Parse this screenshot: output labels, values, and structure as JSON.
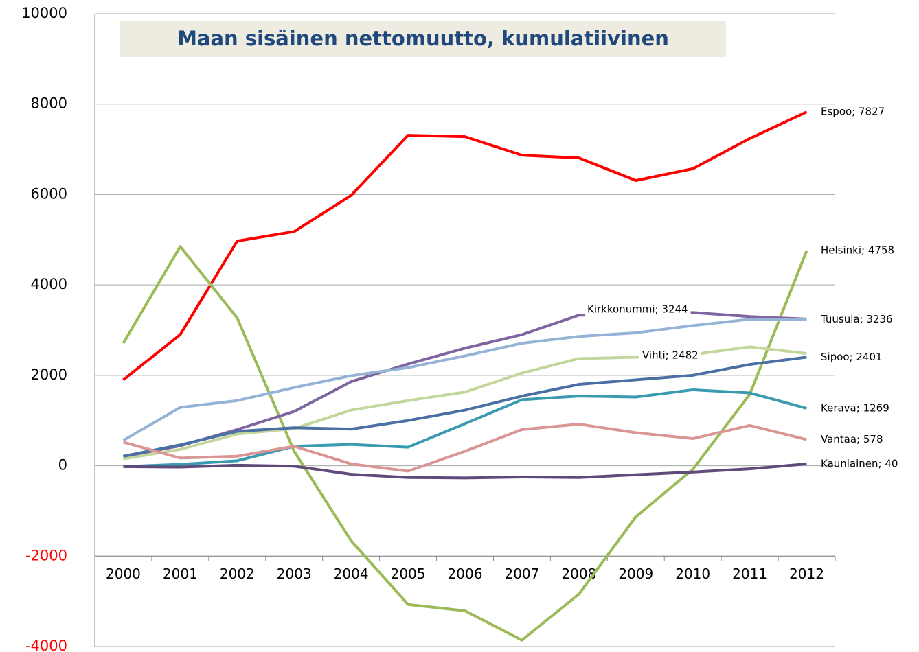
{
  "chart_data": {
    "type": "line",
    "title": "Maan sisäinen nettomuutto, kumulatiivinen",
    "categories": [
      "2000",
      "2001",
      "2002",
      "2003",
      "2004",
      "2005",
      "2006",
      "2007",
      "2008",
      "2009",
      "2010",
      "2011",
      "2012"
    ],
    "ylim": [
      -4000,
      10000
    ],
    "yticks": [
      -4000,
      -2000,
      0,
      2000,
      4000,
      6000,
      8000,
      10000
    ],
    "negative_tick_color": "#ff0000",
    "category_axis_at": -2000,
    "grid": true,
    "series": [
      {
        "name": "Espoo",
        "color": "#ff0000",
        "end_label": "Espoo; 7827",
        "values": [
          1900,
          2900,
          4970,
          5180,
          5980,
          7310,
          7280,
          6870,
          6810,
          6310,
          6570,
          7240,
          7827
        ]
      },
      {
        "name": "Helsinki",
        "color": "#9bbb59",
        "end_label": "Helsinki; 4758",
        "values": [
          2710,
          4850,
          3270,
          320,
          -1660,
          -3070,
          -3210,
          -3860,
          -2840,
          -1130,
          -80,
          1580,
          4758
        ]
      },
      {
        "name": "Kirkkonummi",
        "color": "#8064a2",
        "end_label": "Kirkkonummi; 3244",
        "values": [
          200,
          440,
          800,
          1200,
          1860,
          2250,
          2600,
          2900,
          3330,
          3340,
          3390,
          3300,
          3244
        ]
      },
      {
        "name": "Tuusula",
        "color": "#95b3d7",
        "end_label": "Tuusula; 3236",
        "values": [
          560,
          1290,
          1440,
          1730,
          1990,
          2170,
          2430,
          2710,
          2860,
          2940,
          3100,
          3240,
          3236
        ]
      },
      {
        "name": "Vihti",
        "color": "#c3d69b",
        "end_label": "Vihti; 2482",
        "values": [
          150,
          360,
          700,
          820,
          1230,
          1440,
          1630,
          2050,
          2370,
          2400,
          2460,
          2630,
          2482
        ]
      },
      {
        "name": "Sipoo",
        "color": "#4a6fa5",
        "end_label": "Sipoo; 2401",
        "values": [
          210,
          460,
          760,
          840,
          810,
          1000,
          1230,
          1540,
          1800,
          1900,
          2000,
          2240,
          2401
        ]
      },
      {
        "name": "Kerava",
        "color": "#3a9ab0",
        "end_label": "Kerava; 1269",
        "values": [
          -20,
          30,
          110,
          430,
          470,
          410,
          930,
          1460,
          1540,
          1520,
          1680,
          1610,
          1269
        ]
      },
      {
        "name": "Vantaa",
        "color": "#d99694",
        "end_label": "Vantaa; 578",
        "values": [
          520,
          170,
          210,
          430,
          40,
          -120,
          320,
          800,
          920,
          730,
          600,
          890,
          578
        ]
      },
      {
        "name": "Kauniainen",
        "color": "#604a7b",
        "end_label": "Kauniainen; 40",
        "values": [
          -20,
          -30,
          10,
          -10,
          -190,
          -260,
          -270,
          -250,
          -260,
          -200,
          -140,
          -70,
          40
        ]
      }
    ]
  }
}
